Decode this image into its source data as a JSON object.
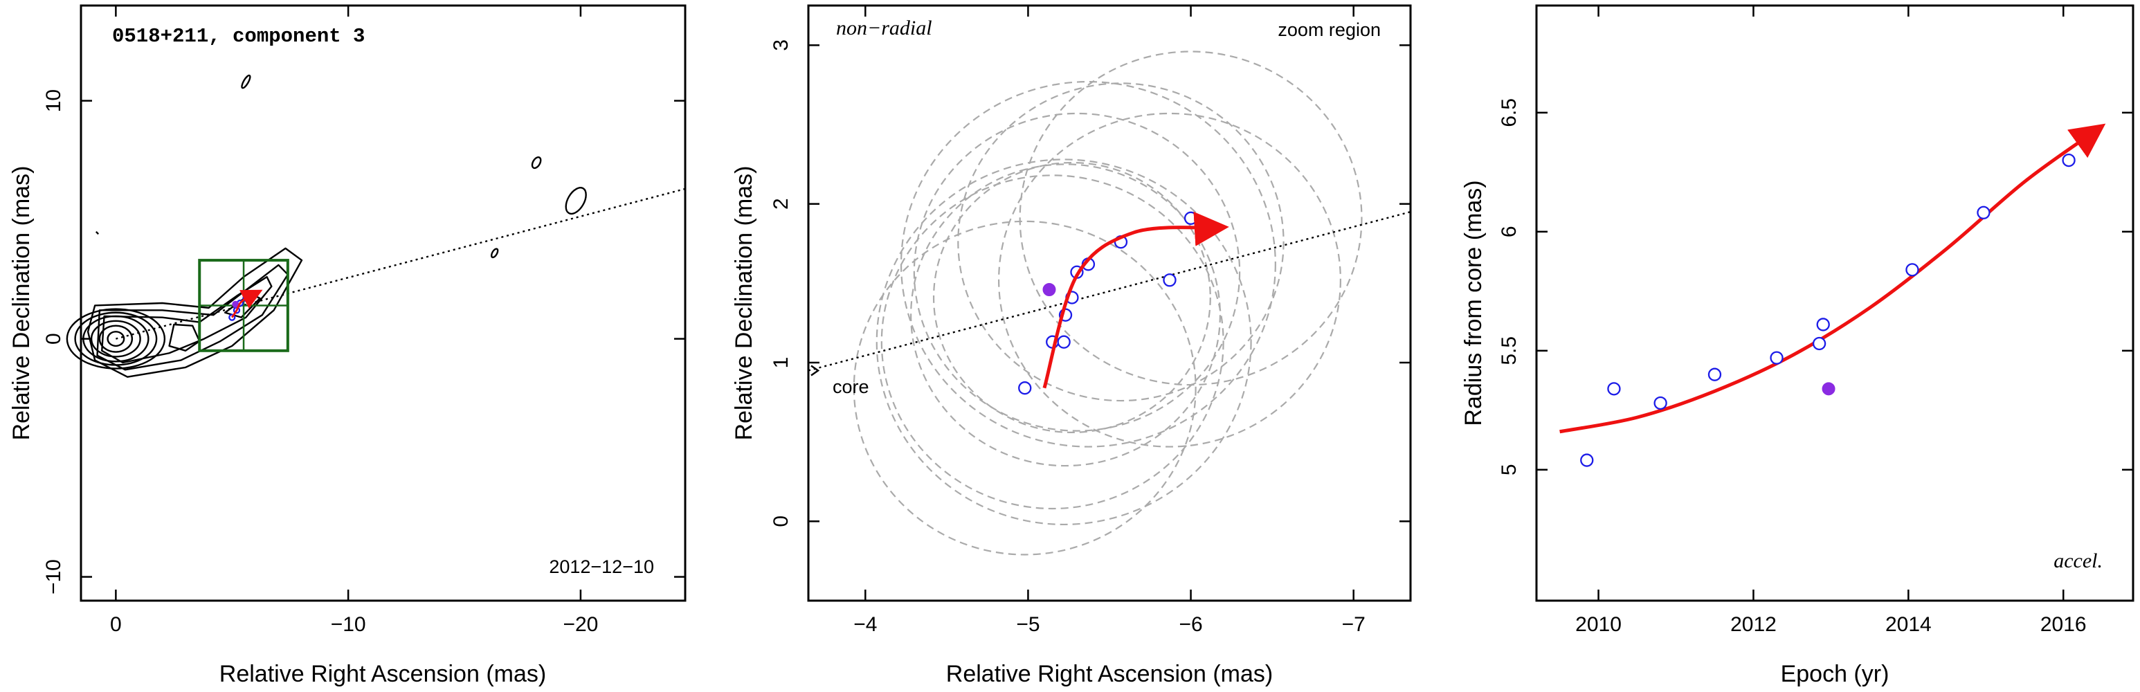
{
  "colors": {
    "open_points": "#1c1ce8",
    "filled_point": "#8a2be2",
    "arrow": "#ee1111",
    "zoom_box": "#1a6a1a",
    "circles": "#aaaaaa"
  },
  "chart_data": [
    {
      "type": "contour",
      "title": "0518+211, component 3",
      "date_label": "2012−12−10",
      "xlabel": "Relative Right Ascension (mas)",
      "ylabel": "Relative Declination (mas)",
      "xlim": [
        1.5,
        -24.5
      ],
      "ylim": [
        -11,
        14
      ],
      "x_ticks": [
        0,
        -10,
        -20
      ],
      "x_tick_labels": [
        "0",
        "−10",
        "−20"
      ],
      "y_ticks": [
        10,
        0,
        -10
      ],
      "y_tick_labels": [
        "10",
        "0",
        "−10"
      ],
      "grid": false,
      "projection_line": {
        "x": [
          0,
          -24.5
        ],
        "y": [
          0,
          6.3
        ]
      },
      "zoom_box": {
        "x": [
          -3.6,
          -7.4
        ],
        "y": [
          -0.5,
          3.3
        ]
      },
      "component_points": [
        {
          "x": -5.0,
          "y": 0.9,
          "filled": false
        },
        {
          "x": -5.2,
          "y": 1.2,
          "filled": false
        },
        {
          "x": -5.35,
          "y": 1.5,
          "filled": false
        },
        {
          "x": -5.6,
          "y": 1.7,
          "filled": false
        },
        {
          "x": -6.0,
          "y": 1.9,
          "filled": false
        },
        {
          "x": -5.15,
          "y": 1.45,
          "filled": true
        }
      ]
    },
    {
      "type": "scatter",
      "subtitle_left": "non−radial",
      "subtitle_right": "zoom region",
      "core_label": "core",
      "xlabel": "Relative Right Ascension (mas)",
      "ylabel": "Relative Declination (mas)",
      "xlim": [
        -3.65,
        -7.35
      ],
      "ylim": [
        -0.5,
        3.25
      ],
      "x_ticks": [
        -4,
        -5,
        -6,
        -7
      ],
      "x_tick_labels": [
        "−4",
        "−5",
        "−6",
        "−7"
      ],
      "y_ticks": [
        0,
        1,
        2,
        3
      ],
      "y_tick_labels": [
        "0",
        "1",
        "2",
        "3"
      ],
      "grid": false,
      "projection_line": {
        "x": [
          -3.65,
          -7.35
        ],
        "y": [
          0.95,
          1.95
        ]
      },
      "points": [
        {
          "x": -4.98,
          "y": 0.84,
          "filled": false
        },
        {
          "x": -5.15,
          "y": 1.13,
          "filled": false
        },
        {
          "x": -5.22,
          "y": 1.13,
          "filled": false
        },
        {
          "x": -5.23,
          "y": 1.3,
          "filled": false
        },
        {
          "x": -5.27,
          "y": 1.41,
          "filled": false
        },
        {
          "x": -5.3,
          "y": 1.57,
          "filled": false
        },
        {
          "x": -5.37,
          "y": 1.62,
          "filled": false
        },
        {
          "x": -5.57,
          "y": 1.76,
          "filled": false
        },
        {
          "x": -5.87,
          "y": 1.52,
          "filled": false
        },
        {
          "x": -6.0,
          "y": 1.91,
          "filled": false
        },
        {
          "x": -5.13,
          "y": 1.46,
          "filled": true
        }
      ],
      "circles": [
        {
          "cx": -4.98,
          "cy": 0.84,
          "r": 1.05
        },
        {
          "cx": -5.15,
          "cy": 1.13,
          "r": 1.05
        },
        {
          "cx": -5.22,
          "cy": 1.13,
          "r": 1.15
        },
        {
          "cx": -5.23,
          "cy": 1.3,
          "r": 0.95
        },
        {
          "cx": -5.27,
          "cy": 1.41,
          "r": 0.85
        },
        {
          "cx": -5.3,
          "cy": 1.57,
          "r": 1.0
        },
        {
          "cx": -5.37,
          "cy": 1.62,
          "r": 1.15
        },
        {
          "cx": -5.57,
          "cy": 1.76,
          "r": 1.0
        },
        {
          "cx": -5.87,
          "cy": 1.52,
          "r": 1.05
        },
        {
          "cx": -6.0,
          "cy": 1.91,
          "r": 1.05
        }
      ],
      "arrow_path": {
        "x": [
          -5.1,
          -5.3,
          -5.65,
          -6.15
        ],
        "y": [
          0.84,
          1.55,
          1.82,
          1.85
        ]
      }
    },
    {
      "type": "scatter",
      "annotation": "accel.",
      "xlabel": "Epoch (yr)",
      "ylabel": "Radius from core (mas)",
      "xlim": [
        2009.2,
        2016.9
      ],
      "ylim": [
        4.45,
        6.95
      ],
      "x_ticks": [
        2010,
        2012,
        2014,
        2016
      ],
      "x_tick_labels": [
        "2010",
        "2012",
        "2014",
        "2016"
      ],
      "y_ticks": [
        5,
        5.5,
        6,
        6.5
      ],
      "y_tick_labels": [
        "5",
        "5.5",
        "6",
        "6.5"
      ],
      "grid": false,
      "points": [
        {
          "x": 2009.85,
          "y": 5.04,
          "filled": false
        },
        {
          "x": 2010.2,
          "y": 5.34,
          "filled": false
        },
        {
          "x": 2010.8,
          "y": 5.28,
          "filled": false
        },
        {
          "x": 2011.5,
          "y": 5.4,
          "filled": false
        },
        {
          "x": 2012.3,
          "y": 5.47,
          "filled": false
        },
        {
          "x": 2012.85,
          "y": 5.53,
          "filled": false
        },
        {
          "x": 2012.9,
          "y": 5.61,
          "filled": false
        },
        {
          "x": 2014.05,
          "y": 5.84,
          "filled": false
        },
        {
          "x": 2014.97,
          "y": 6.08,
          "filled": false
        },
        {
          "x": 2016.07,
          "y": 6.3,
          "filled": false
        },
        {
          "x": 2012.97,
          "y": 5.34,
          "filled": true
        }
      ],
      "fit_curve": {
        "x": [
          2009.5,
          2010.5,
          2011.5,
          2012.5,
          2013.5,
          2014.5,
          2015.5,
          2016.4
        ],
        "y": [
          5.16,
          5.22,
          5.33,
          5.48,
          5.68,
          5.93,
          6.21,
          6.42
        ]
      }
    }
  ]
}
